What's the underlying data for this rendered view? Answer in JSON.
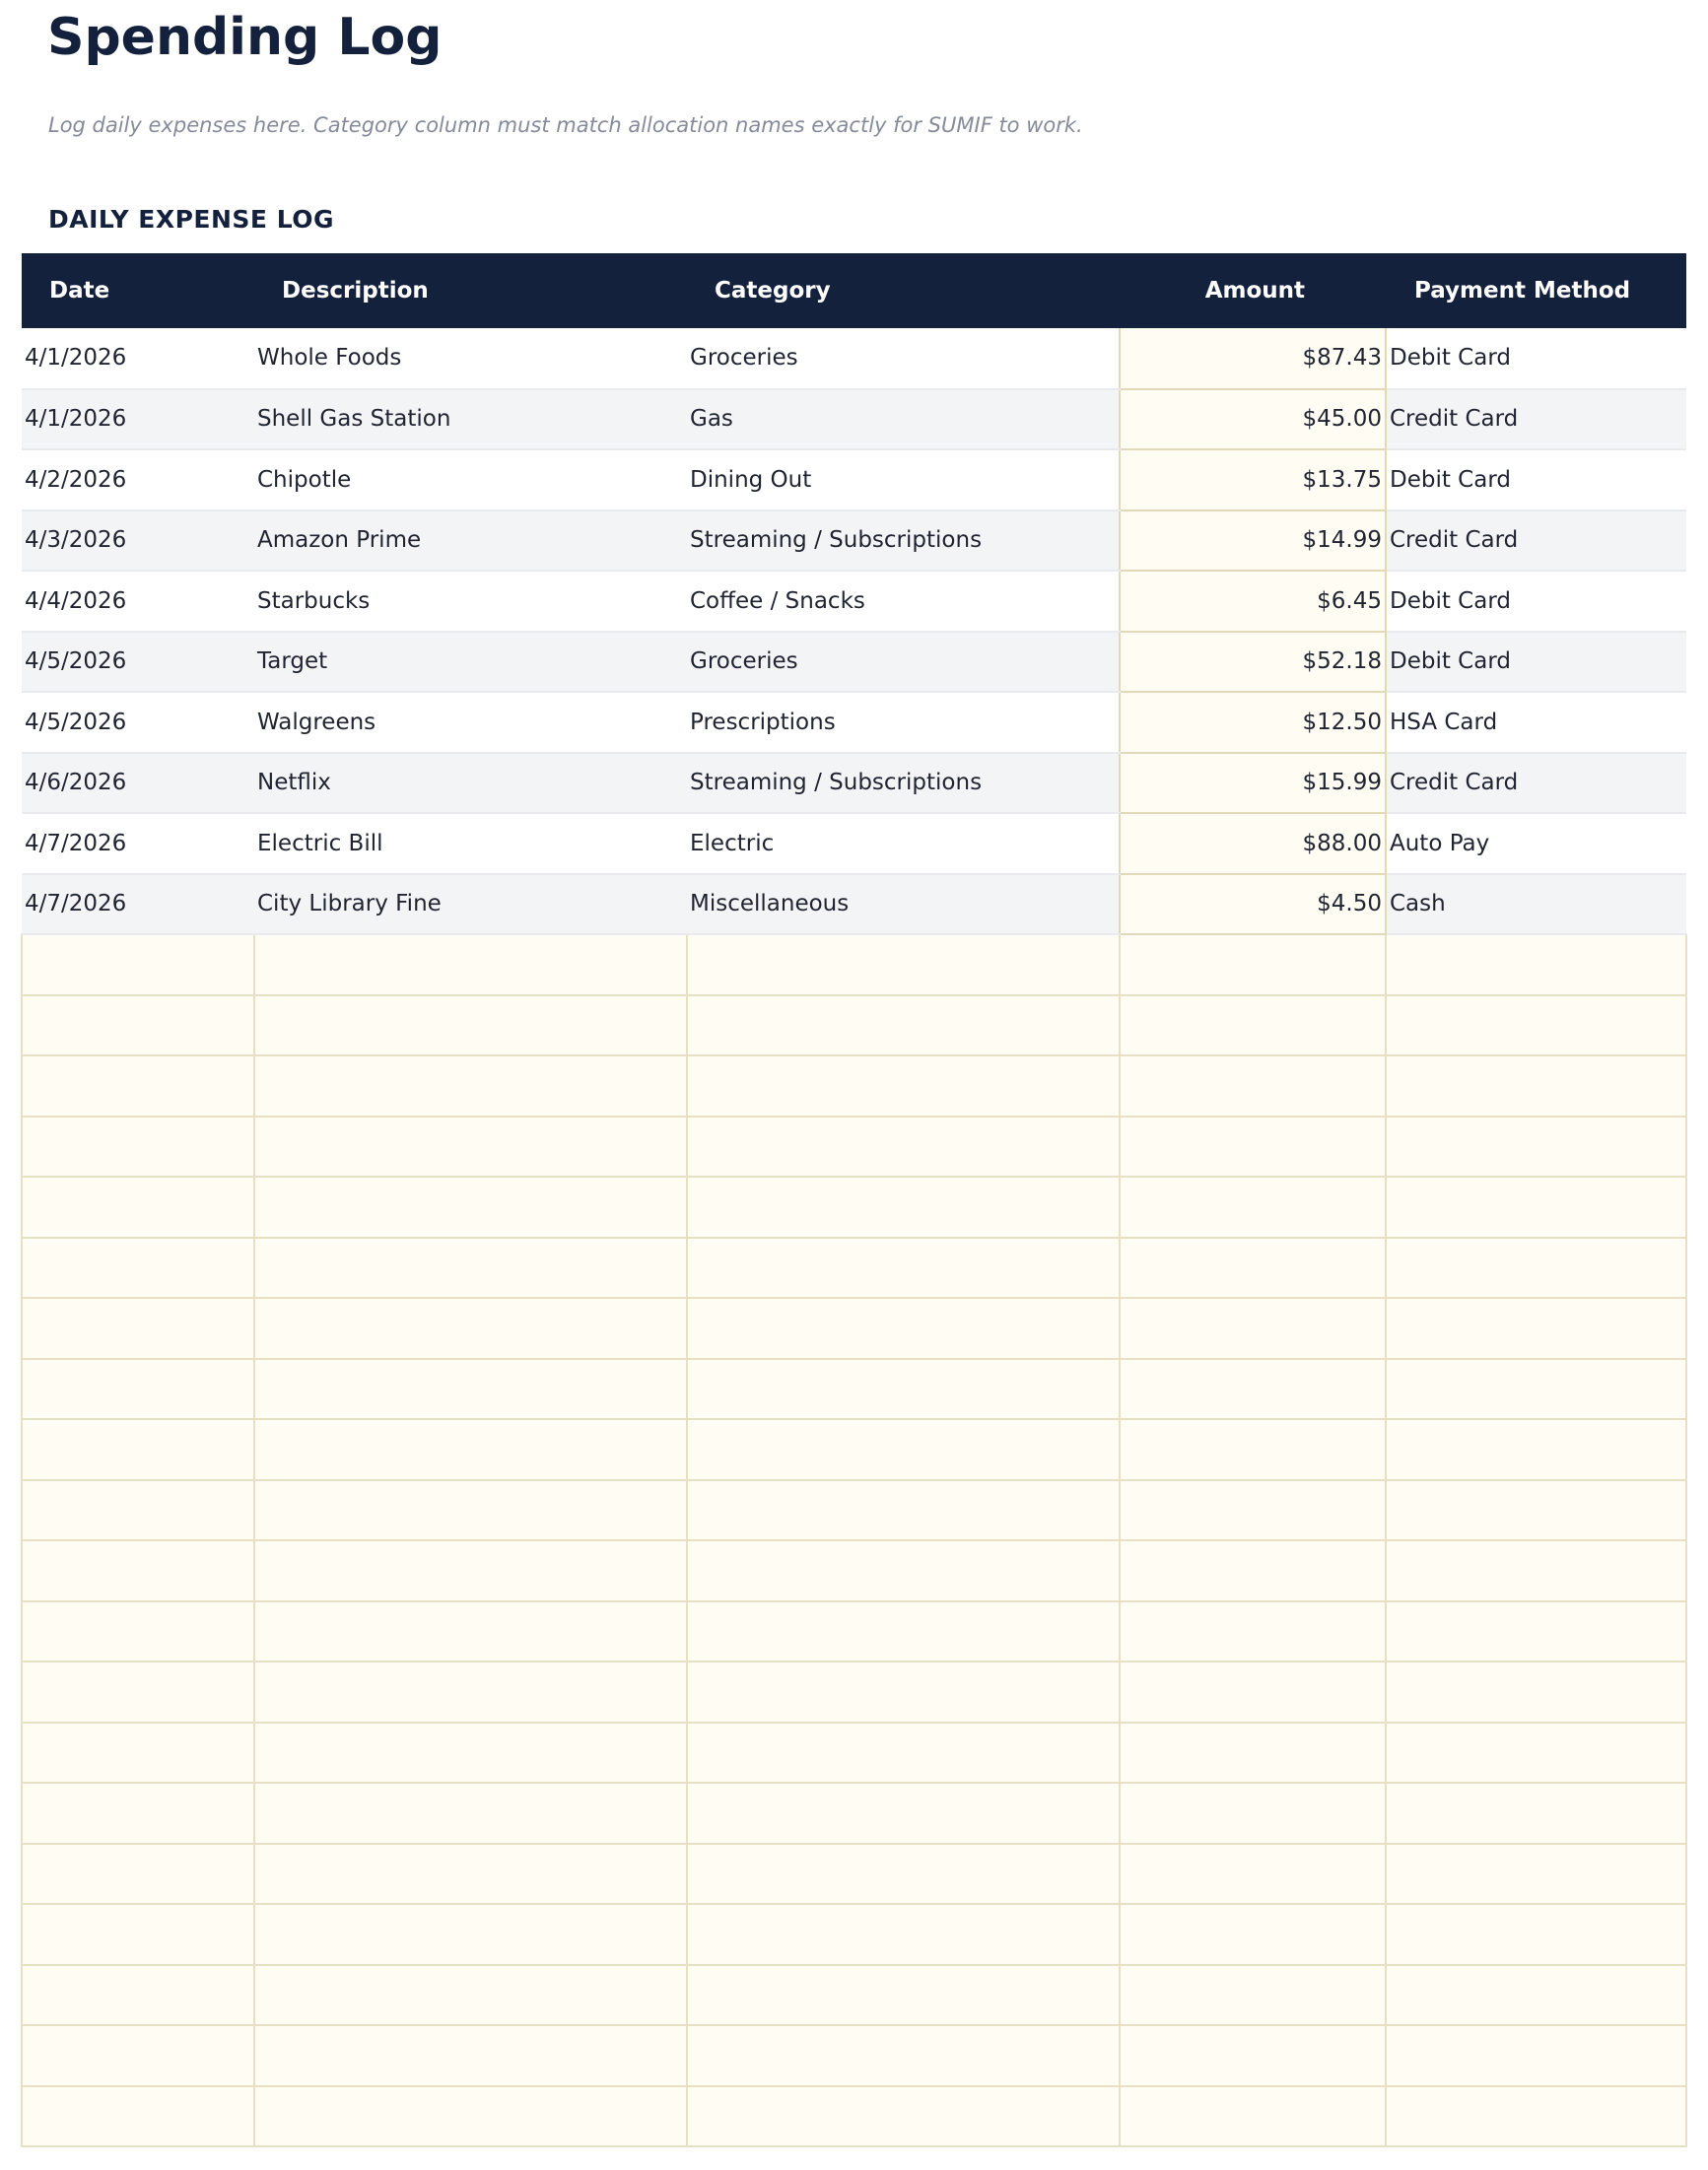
{
  "page": {
    "title": "Spending Log",
    "subtitle": "Log daily expenses here. Category column must match allocation names exactly for SUMIF to work.",
    "section_heading": "DAILY EXPENSE LOG"
  },
  "table": {
    "columns": [
      "Date",
      "Description",
      "Category",
      "Amount",
      "Payment Method"
    ],
    "rows": [
      {
        "date": "4/1/2026",
        "description": "Whole Foods",
        "category": "Groceries",
        "amount": "$87.43",
        "payment": "Debit Card"
      },
      {
        "date": "4/1/2026",
        "description": "Shell Gas Station",
        "category": "Gas",
        "amount": "$45.00",
        "payment": "Credit Card"
      },
      {
        "date": "4/2/2026",
        "description": "Chipotle",
        "category": "Dining Out",
        "amount": "$13.75",
        "payment": "Debit Card"
      },
      {
        "date": "4/3/2026",
        "description": "Amazon Prime",
        "category": "Streaming / Subscriptions",
        "amount": "$14.99",
        "payment": "Credit Card"
      },
      {
        "date": "4/4/2026",
        "description": "Starbucks",
        "category": "Coffee / Snacks",
        "amount": "$6.45",
        "payment": "Debit Card"
      },
      {
        "date": "4/5/2026",
        "description": "Target",
        "category": "Groceries",
        "amount": "$52.18",
        "payment": "Debit Card"
      },
      {
        "date": "4/5/2026",
        "description": "Walgreens",
        "category": "Prescriptions",
        "amount": "$12.50",
        "payment": "HSA Card"
      },
      {
        "date": "4/6/2026",
        "description": "Netflix",
        "category": "Streaming / Subscriptions",
        "amount": "$15.99",
        "payment": "Credit Card"
      },
      {
        "date": "4/7/2026",
        "description": "Electric Bill",
        "category": "Electric",
        "amount": "$88.00",
        "payment": "Auto Pay"
      },
      {
        "date": "4/7/2026",
        "description": "City Library Fine",
        "category": "Miscellaneous",
        "amount": "$4.50",
        "payment": "Cash"
      }
    ],
    "empty_input_rows": 20
  },
  "colors": {
    "header_bg": "#14213d",
    "input_cell_bg": "#fffcf3",
    "input_cell_border": "#e3d9b8",
    "stripe_bg": "#f3f4f6"
  }
}
